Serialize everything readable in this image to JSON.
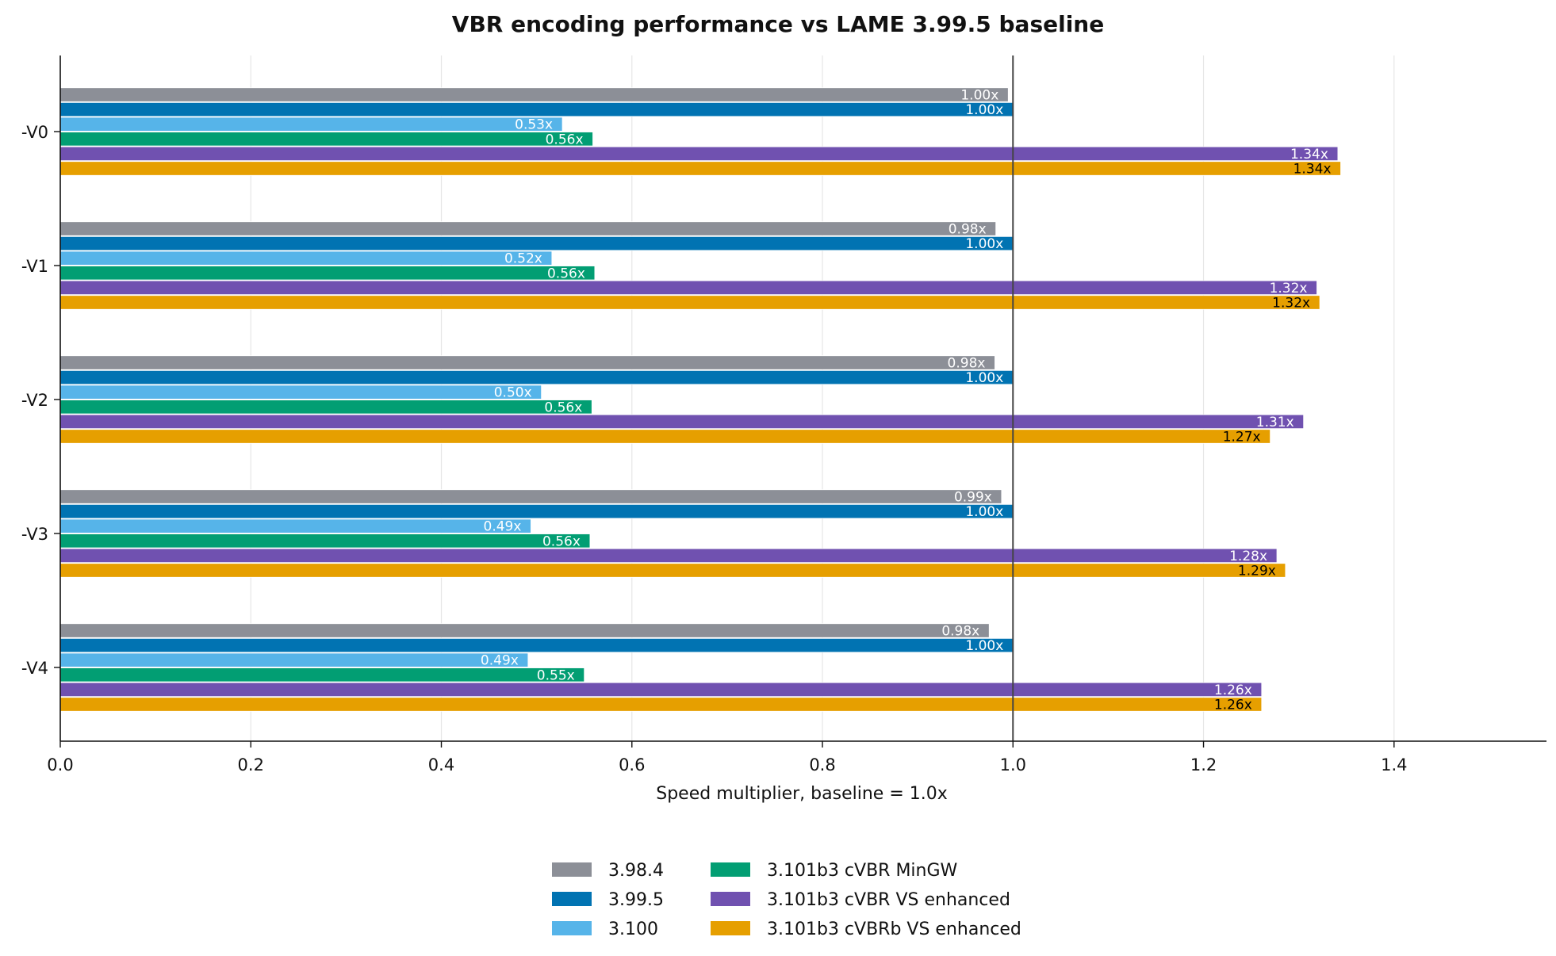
{
  "chart_data": {
    "type": "bar",
    "orientation": "horizontal",
    "title": "VBR encoding performance vs LAME 3.99.5 baseline",
    "xlabel": "Speed multiplier, baseline = 1.0x",
    "ylabel": "",
    "xlim": [
      0,
      1.56
    ],
    "xticks": [
      0.0,
      0.2,
      0.4,
      0.6,
      0.8,
      1.0,
      1.2,
      1.4
    ],
    "xtick_labels": [
      "0.0",
      "0.2",
      "0.4",
      "0.6",
      "0.8",
      "1.0",
      "1.2",
      "1.4"
    ],
    "reference_line": 1.0,
    "grid": "vertical",
    "legend_position": "bottom-center",
    "categories": [
      "-V0",
      "-V1",
      "-V2",
      "-V3",
      "-V4"
    ],
    "series": [
      {
        "name": "3.98.4",
        "color": "#8c8f97",
        "label_color": "#ffffff",
        "values": [
          0.995,
          0.982,
          0.981,
          0.988,
          0.975
        ],
        "labels": [
          "1.00x",
          "0.98x",
          "0.98x",
          "0.99x",
          "0.98x"
        ]
      },
      {
        "name": "3.99.5",
        "color": "#0173b2",
        "label_color": "#ffffff",
        "values": [
          1.0,
          1.0,
          1.0,
          1.0,
          1.0
        ],
        "labels": [
          "1.00x",
          "1.00x",
          "1.00x",
          "1.00x",
          "1.00x"
        ]
      },
      {
        "name": "3.100",
        "color": "#56b4e9",
        "label_color": "#ffffff",
        "values": [
          0.527,
          0.516,
          0.505,
          0.494,
          0.491
        ],
        "labels": [
          "0.53x",
          "0.52x",
          "0.50x",
          "0.49x",
          "0.49x"
        ]
      },
      {
        "name": "3.101b3 cVBR MinGW",
        "color": "#029e73",
        "label_color": "#ffffff",
        "values": [
          0.559,
          0.561,
          0.558,
          0.556,
          0.55
        ],
        "labels": [
          "0.56x",
          "0.56x",
          "0.56x",
          "0.56x",
          "0.55x"
        ]
      },
      {
        "name": "3.101b3 cVBR VS enhanced",
        "color": "#7051b0",
        "label_color": "#ffffff",
        "values": [
          1.341,
          1.319,
          1.305,
          1.277,
          1.261
        ],
        "labels": [
          "1.34x",
          "1.32x",
          "1.31x",
          "1.28x",
          "1.26x"
        ]
      },
      {
        "name": "3.101b3 cVBRb VS enhanced",
        "color": "#e69f00",
        "label_color": "#000000",
        "values": [
          1.344,
          1.322,
          1.27,
          1.286,
          1.261
        ],
        "labels": [
          "1.34x",
          "1.32x",
          "1.27x",
          "1.29x",
          "1.26x"
        ]
      }
    ]
  }
}
